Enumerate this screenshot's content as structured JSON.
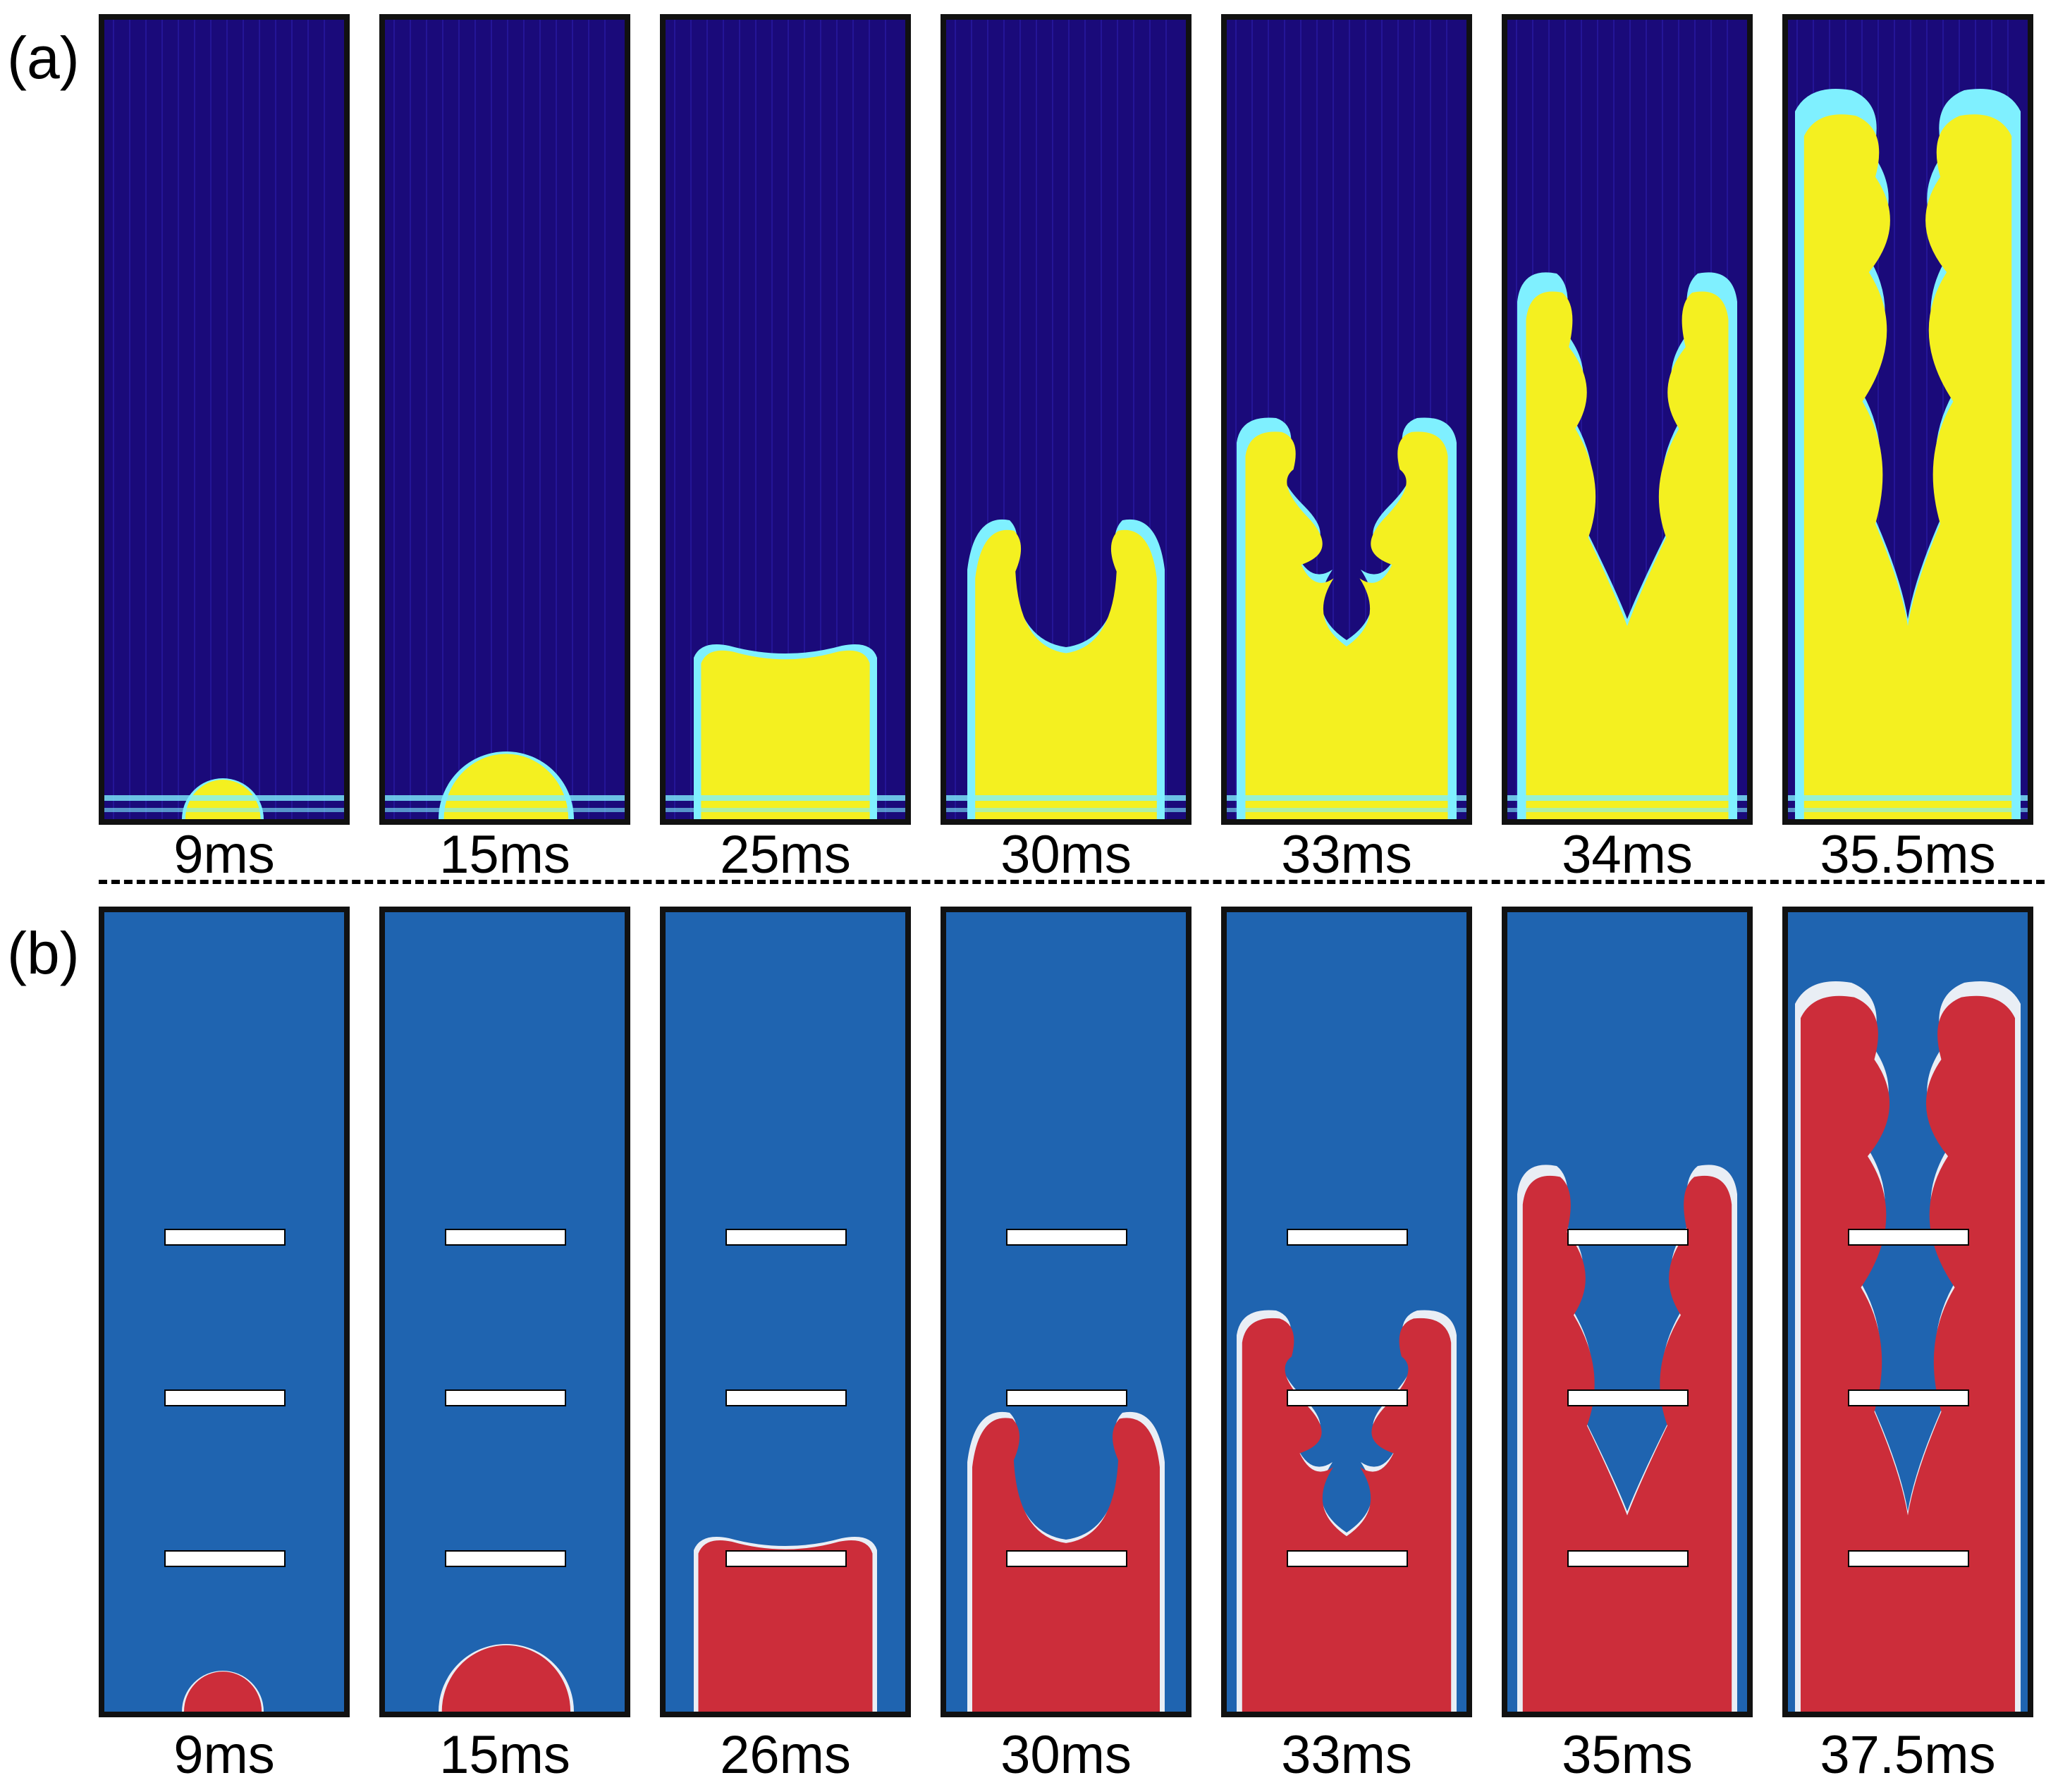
{
  "figure": {
    "row_a": {
      "label": "(a)",
      "frames": [
        "9ms",
        "15ms",
        "25ms",
        "30ms",
        "33ms",
        "34ms",
        "35.5ms"
      ]
    },
    "row_b": {
      "label": "(b)",
      "frames": [
        "9ms",
        "15ms",
        "26ms",
        "30ms",
        "33ms",
        "35ms",
        "37.5ms"
      ]
    }
  },
  "colors": {
    "exp_background": "#1a0a7a",
    "exp_front": "#f4f020",
    "exp_edge": "#7ff0ff",
    "sim_background": "#1f64b0",
    "sim_burned": "#cc2d3a",
    "obstacle": "#ffffff"
  }
}
